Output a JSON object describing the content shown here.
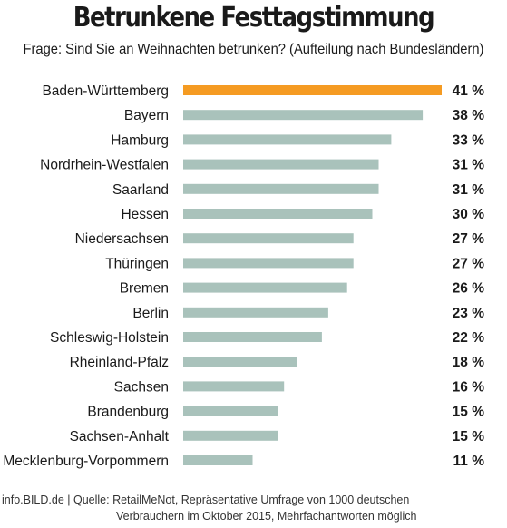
{
  "header": {
    "title": "Betrunkene Festtagstimmung",
    "subtitle": "Frage: Sind Sie an Weihnachten betrunken? (Aufteilung nach Bundesländern)"
  },
  "footer": {
    "line1": "info.BILD.de | Quelle: RetailMeNot, Repräsentative Umfrage von 1000 deutschen",
    "line2": "Verbrauchern im Oktober 2015, Mehrfachantworten möglich"
  },
  "colors": {
    "highlight": "#f59b22",
    "bar": "#a9c2bb"
  },
  "chart_data": {
    "type": "bar",
    "orientation": "horizontal",
    "unit": "%",
    "categories": [
      "Baden-Württemberg",
      "Bayern",
      "Hamburg",
      "Nordrhein-Westfalen",
      "Saarland",
      "Hessen",
      "Niedersachsen",
      "Thüringen",
      "Bremen",
      "Berlin",
      "Schleswig-Holstein",
      "Rheinland-Pfalz",
      "Sachsen",
      "Brandenburg",
      "Sachsen-Anhalt",
      "Mecklenburg-Vorpommern"
    ],
    "values": [
      41,
      38,
      33,
      31,
      31,
      30,
      27,
      27,
      26,
      23,
      22,
      18,
      16,
      15,
      15,
      11
    ],
    "value_labels": [
      "41 %",
      "38 %",
      "33 %",
      "31 %",
      "31 %",
      "30 %",
      "27 %",
      "27 %",
      "26 %",
      "23 %",
      "22 %",
      "18 %",
      "16 %",
      "15 %",
      "15 %",
      "11 %"
    ],
    "highlight_index": 0,
    "xlim": [
      0,
      41
    ],
    "grid": false,
    "legend": "none"
  }
}
